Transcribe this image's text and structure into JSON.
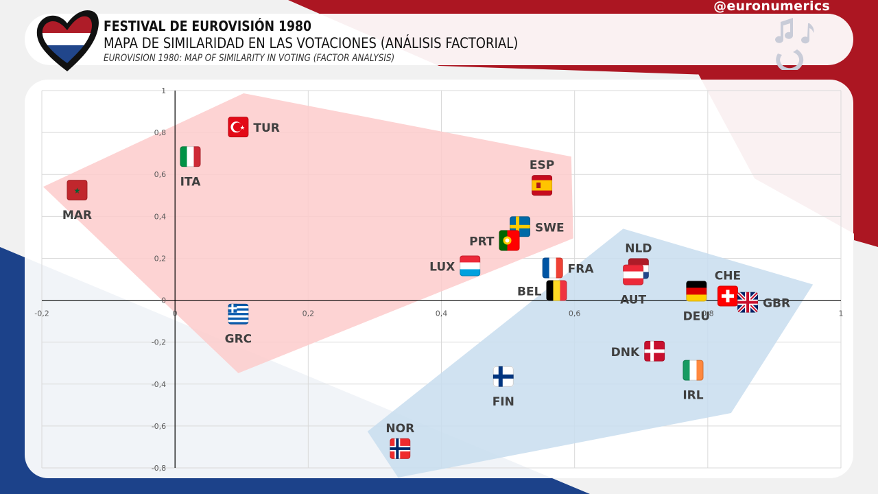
{
  "header": {
    "handle": "@euronumerics",
    "title": "FESTIVAL DE EUROVISIÓN 1980",
    "subtitle_es": "MAPA DE SIMILARIDAD EN LAS VOTACIONES (ANÁLISIS FACTORIAL)",
    "subtitle_en": "EUROVISION 1980: MAP OF SIMILARITY IN VOTING (FACTOR ANALYSIS)",
    "logo_icon": "eurovision-heart-netherlands-flag-icon",
    "decor_icon": "music-notes-icon"
  },
  "colors": {
    "red_band": "#ac1622",
    "blue_band": "#1c428a",
    "cluster_red": "#fdcbcb",
    "cluster_blue": "#c8ddef",
    "label": "#3f3f3f",
    "grid": "#d9d9d9"
  },
  "chart_data": {
    "type": "scatter",
    "title": "MAPA DE SIMILARIDAD EN LAS VOTACIONES (ANÁLISIS FACTORIAL)",
    "xlabel": "",
    "ylabel": "",
    "xlim": [
      -0.2,
      1
    ],
    "ylim": [
      -0.8,
      1
    ],
    "x_ticks": [
      {
        "v": -0.2,
        "label": "-0,2"
      },
      {
        "v": 0,
        "label": "0"
      },
      {
        "v": 0.2,
        "label": "0,2"
      },
      {
        "v": 0.4,
        "label": "0,4"
      },
      {
        "v": 0.6,
        "label": "0,6"
      },
      {
        "v": 0.8,
        "label": "0,8"
      },
      {
        "v": 1,
        "label": "1"
      }
    ],
    "y_ticks": [
      {
        "v": 1,
        "label": "1"
      },
      {
        "v": 0.8,
        "label": "0,8"
      },
      {
        "v": 0.6,
        "label": "0,6"
      },
      {
        "v": 0.4,
        "label": "0,4"
      },
      {
        "v": 0.2,
        "label": "0,2"
      },
      {
        "v": 0,
        "label": "0"
      },
      {
        "v": -0.2,
        "label": "-0,2"
      },
      {
        "v": -0.4,
        "label": "-0,4"
      },
      {
        "v": -0.6,
        "label": "-0,6"
      },
      {
        "v": -0.8,
        "label": "-0,8"
      }
    ],
    "grid": true,
    "legend": "none",
    "points": [
      {
        "code": "MAR",
        "x": -0.147,
        "y": 0.525,
        "flag": "morocco-flag",
        "label_pos": "below"
      },
      {
        "code": "TUR",
        "x": 0.095,
        "y": 0.826,
        "flag": "turkey-flag",
        "label_pos": "right"
      },
      {
        "code": "ITA",
        "x": 0.023,
        "y": 0.685,
        "flag": "italy-flag",
        "label_pos": "below"
      },
      {
        "code": "ESP",
        "x": 0.551,
        "y": 0.548,
        "flag": "spain-flag",
        "label_pos": "above"
      },
      {
        "code": "SWE",
        "x": 0.518,
        "y": 0.351,
        "flag": "sweden-flag",
        "label_pos": "right"
      },
      {
        "code": "PRT",
        "x": 0.502,
        "y": 0.285,
        "flag": "portugal-flag",
        "label_pos": "left"
      },
      {
        "code": "LUX",
        "x": 0.443,
        "y": 0.164,
        "flag": "luxembourg-flag",
        "label_pos": "left"
      },
      {
        "code": "FRA",
        "x": 0.567,
        "y": 0.154,
        "flag": "france-flag",
        "label_pos": "right"
      },
      {
        "code": "BEL",
        "x": 0.573,
        "y": 0.046,
        "flag": "belgium-flag",
        "label_pos": "left"
      },
      {
        "code": "NLD",
        "x": 0.696,
        "y": 0.151,
        "flag": "netherlands-flag",
        "label_pos": "above"
      },
      {
        "code": "AUT",
        "x": 0.688,
        "y": 0.121,
        "flag": "austria-flag",
        "label_pos": "below"
      },
      {
        "code": "DEU",
        "x": 0.783,
        "y": 0.043,
        "flag": "germany-flag",
        "label_pos": "below"
      },
      {
        "code": "CHE",
        "x": 0.83,
        "y": 0.02,
        "flag": "switzerland-flag",
        "label_pos": "above"
      },
      {
        "code": "GBR",
        "x": 0.86,
        "y": -0.01,
        "flag": "uk-flag",
        "label_pos": "right"
      },
      {
        "code": "GRC",
        "x": 0.095,
        "y": -0.066,
        "flag": "greece-flag",
        "label_pos": "below"
      },
      {
        "code": "DNK",
        "x": 0.72,
        "y": -0.243,
        "flag": "denmark-flag",
        "label_pos": "left"
      },
      {
        "code": "IRL",
        "x": 0.778,
        "y": -0.334,
        "flag": "ireland-flag",
        "label_pos": "below"
      },
      {
        "code": "FIN",
        "x": 0.493,
        "y": -0.364,
        "flag": "finland-flag",
        "label_pos": "below"
      },
      {
        "code": "NOR",
        "x": 0.338,
        "y": -0.708,
        "flag": "norway-flag",
        "label_pos": "above"
      }
    ],
    "clusters": [
      {
        "name": "red-cluster",
        "color": "#fdcbcb",
        "hull": [
          [
            -0.198,
            0.541
          ],
          [
            0.103,
            0.987
          ],
          [
            0.595,
            0.685
          ],
          [
            0.598,
            0.295
          ],
          [
            0.095,
            -0.348
          ]
        ]
      },
      {
        "name": "blue-cluster",
        "color": "#c8ddef",
        "hull": [
          [
            0.673,
            0.341
          ],
          [
            0.958,
            0.075
          ],
          [
            0.835,
            -0.538
          ],
          [
            0.335,
            -0.846
          ],
          [
            0.289,
            -0.626
          ]
        ]
      }
    ]
  }
}
